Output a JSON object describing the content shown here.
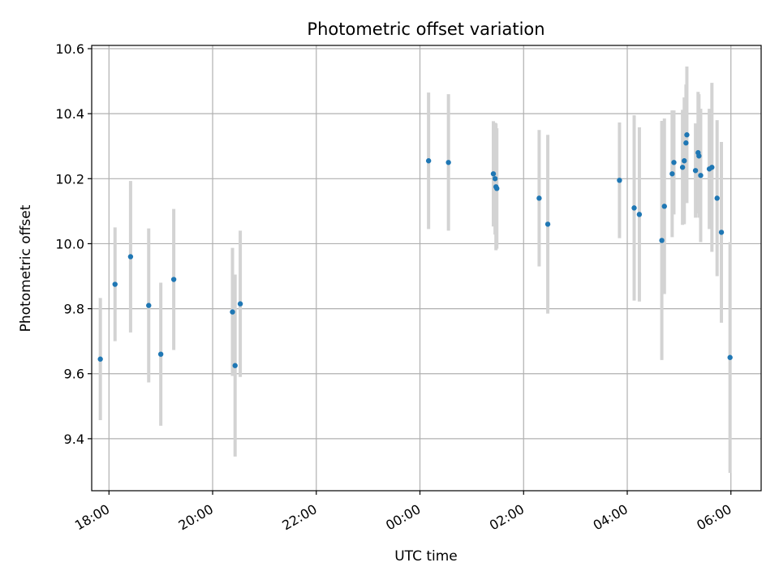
{
  "chart_data": {
    "type": "scatter",
    "title": "Photometric offset variation",
    "xlabel": "UTC time",
    "ylabel": "Photometric offset",
    "xaxis_kind": "time (UTC), day boundary between 22:00 and 00:00",
    "x_tick_labels": [
      "18:00",
      "20:00",
      "22:00",
      "00:00",
      "02:00",
      "04:00",
      "06:00"
    ],
    "y_tick_labels": [
      "9.4",
      "9.6",
      "9.8",
      "10.0",
      "10.2",
      "10.4",
      "10.6"
    ],
    "xlim": [
      "17:40",
      "06:35"
    ],
    "ylim": [
      9.24,
      10.61
    ],
    "grid": true,
    "colors": {
      "marker": "#1f77b4",
      "errorbar": "#d3d3d3",
      "grid": "#b0b0b0"
    },
    "series": [
      {
        "points": [
          {
            "x": "17:50",
            "y": 9.645,
            "err": 0.188
          },
          {
            "x": "18:07",
            "y": 9.875,
            "err": 0.175
          },
          {
            "x": "18:25",
            "y": 9.96,
            "err": 0.233
          },
          {
            "x": "18:46",
            "y": 9.81,
            "err": 0.237
          },
          {
            "x": "19:00",
            "y": 9.66,
            "err": 0.22
          },
          {
            "x": "19:15",
            "y": 9.89,
            "err": 0.217
          },
          {
            "x": "20:23",
            "y": 9.79,
            "err": 0.197
          },
          {
            "x": "20:26",
            "y": 9.625,
            "err": 0.28
          },
          {
            "x": "20:32",
            "y": 9.815,
            "err": 0.225
          },
          {
            "x": "00:10",
            "y": 10.255,
            "err": 0.21
          },
          {
            "x": "00:33",
            "y": 10.25,
            "err": 0.21
          },
          {
            "x": "01:25",
            "y": 10.215,
            "err": 0.162
          },
          {
            "x": "01:27",
            "y": 10.2,
            "err": 0.172
          },
          {
            "x": "01:28",
            "y": 10.175,
            "err": 0.195
          },
          {
            "x": "01:29",
            "y": 10.17,
            "err": 0.185
          },
          {
            "x": "02:18",
            "y": 10.14,
            "err": 0.21
          },
          {
            "x": "02:28",
            "y": 10.06,
            "err": 0.275
          },
          {
            "x": "03:51",
            "y": 10.195,
            "err": 0.178
          },
          {
            "x": "04:08",
            "y": 10.11,
            "err": 0.285
          },
          {
            "x": "04:14",
            "y": 10.09,
            "err": 0.268
          },
          {
            "x": "04:40",
            "y": 10.01,
            "err": 0.368
          },
          {
            "x": "04:43",
            "y": 10.115,
            "err": 0.27
          },
          {
            "x": "04:52",
            "y": 10.215,
            "err": 0.195
          },
          {
            "x": "04:54",
            "y": 10.25,
            "err": 0.16
          },
          {
            "x": "05:04",
            "y": 10.235,
            "err": 0.177
          },
          {
            "x": "05:06",
            "y": 10.255,
            "err": 0.195
          },
          {
            "x": "05:08",
            "y": 10.31,
            "err": 0.18
          },
          {
            "x": "05:09",
            "y": 10.335,
            "err": 0.21
          },
          {
            "x": "05:19",
            "y": 10.225,
            "err": 0.145
          },
          {
            "x": "05:22",
            "y": 10.28,
            "err": 0.187
          },
          {
            "x": "05:23",
            "y": 10.27,
            "err": 0.19
          },
          {
            "x": "05:25",
            "y": 10.21,
            "err": 0.205
          },
          {
            "x": "05:35",
            "y": 10.23,
            "err": 0.185
          },
          {
            "x": "05:38",
            "y": 10.235,
            "err": 0.26
          },
          {
            "x": "05:44",
            "y": 10.14,
            "err": 0.24
          },
          {
            "x": "05:49",
            "y": 10.035,
            "err": 0.278
          },
          {
            "x": "05:59",
            "y": 9.65,
            "err": 0.355
          }
        ]
      }
    ]
  }
}
